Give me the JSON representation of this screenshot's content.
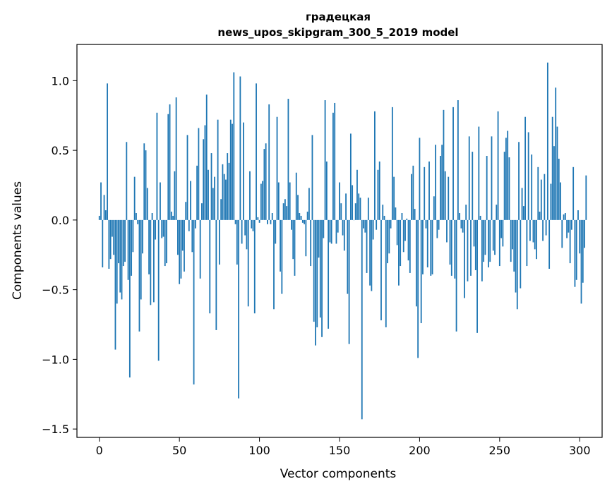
{
  "chart_data": {
    "type": "bar",
    "title_line1": "градецкая",
    "title_line2": "news_upos_skipgram_300_5_2019 model",
    "xlabel": "Vector components",
    "ylabel": "Components values",
    "xlim": [
      -14,
      314
    ],
    "ylim": [
      -1.56,
      1.26
    ],
    "xticks": [
      0,
      50,
      100,
      150,
      200,
      250,
      300
    ],
    "yticks": [
      1.0,
      0.5,
      0.0,
      -0.5,
      -1.0,
      -1.5
    ],
    "ytick_labels": [
      "1.0",
      "0.5",
      "0.0",
      "−0.5",
      "−1.0",
      "−1.5"
    ],
    "bar_color": "#1f77b4",
    "values": [
      0.03,
      0.27,
      -0.34,
      0.18,
      0.07,
      0.98,
      -0.35,
      -0.28,
      -0.12,
      -0.25,
      -0.93,
      -0.6,
      -0.31,
      -0.52,
      -0.57,
      -0.33,
      -0.3,
      0.56,
      -0.43,
      -1.13,
      -0.4,
      -0.23,
      0.31,
      0.05,
      -0.03,
      -0.8,
      -0.57,
      -0.24,
      0.55,
      0.5,
      0.23,
      -0.39,
      -0.61,
      0.05,
      -0.59,
      -0.14,
      0.77,
      -1.01,
      0.27,
      -0.13,
      -0.12,
      -0.33,
      -0.31,
      0.76,
      0.83,
      0.06,
      0.03,
      0.35,
      0.88,
      -0.25,
      -0.46,
      -0.42,
      -0.22,
      -0.37,
      0.13,
      0.61,
      -0.08,
      0.28,
      -0.23,
      -1.18,
      -0.06,
      0.39,
      0.66,
      -0.42,
      0.12,
      0.58,
      0.68,
      0.9,
      0.36,
      -0.67,
      0.48,
      0.23,
      0.31,
      -0.79,
      0.72,
      -0.32,
      0.15,
      0.4,
      0.33,
      0.29,
      0.48,
      0.41,
      0.72,
      0.69,
      1.06,
      -0.03,
      -0.32,
      -1.28,
      1.03,
      -0.17,
      0.7,
      -0.11,
      -0.21,
      -0.62,
      0.35,
      -0.06,
      -0.08,
      -0.67,
      0.98,
      0.02,
      -0.02,
      0.26,
      0.28,
      0.51,
      0.55,
      -0.03,
      0.83,
      -0.03,
      0.05,
      -0.64,
      -0.17,
      0.74,
      0.27,
      -0.37,
      -0.53,
      0.12,
      0.15,
      0.1,
      0.87,
      0.27,
      -0.07,
      -0.28,
      -0.4,
      0.34,
      0.18,
      0.05,
      0.03,
      -0.02,
      -0.03,
      -0.26,
      0.06,
      0.23,
      -0.33,
      0.61,
      -0.73,
      -0.9,
      -0.77,
      -0.27,
      -0.7,
      -0.84,
      -0.13,
      0.86,
      0.42,
      -0.78,
      -0.16,
      -0.17,
      0.77,
      0.84,
      -0.17,
      -0.09,
      0.27,
      0.12,
      -0.11,
      -0.22,
      0.19,
      -0.53,
      -0.89,
      0.62,
      0.25,
      0.0,
      0.12,
      0.36,
      0.19,
      0.16,
      -1.43,
      -0.06,
      -0.09,
      -0.38,
      0.16,
      -0.47,
      -0.51,
      -0.14,
      0.78,
      -0.07,
      0.36,
      0.42,
      -0.72,
      0.11,
      0.03,
      -0.77,
      -0.31,
      -0.24,
      -0.06,
      0.81,
      0.31,
      0.09,
      -0.18,
      -0.47,
      -0.33,
      0.05,
      -0.23,
      -0.15,
      0.01,
      -0.29,
      -0.38,
      0.33,
      0.39,
      0.08,
      -0.62,
      -0.99,
      0.59,
      -0.74,
      -0.39,
      0.38,
      -0.06,
      -0.34,
      0.42,
      -0.4,
      -0.39,
      0.17,
      0.54,
      -0.13,
      -0.07,
      0.46,
      0.54,
      0.79,
      0.35,
      -0.16,
      0.31,
      -0.32,
      -0.4,
      0.81,
      -0.42,
      -0.8,
      0.86,
      0.05,
      -0.06,
      -0.09,
      -0.56,
      0.11,
      -0.44,
      0.6,
      -0.4,
      0.49,
      -0.19,
      -0.36,
      -0.81,
      0.67,
      0.03,
      -0.44,
      -0.3,
      -0.25,
      0.46,
      -0.34,
      -0.3,
      0.6,
      -0.22,
      -0.25,
      0.11,
      0.78,
      -0.33,
      -0.13,
      -0.19,
      0.49,
      0.59,
      0.64,
      0.45,
      -0.3,
      -0.21,
      -0.37,
      -0.52,
      -0.64,
      0.56,
      -0.49,
      0.23,
      0.1,
      0.74,
      -0.33,
      0.63,
      -0.15,
      0.47,
      -0.16,
      -0.21,
      -0.28,
      0.38,
      0.06,
      0.29,
      -0.15,
      0.33,
      -0.11,
      1.13,
      -0.35,
      0.26,
      0.74,
      0.53,
      0.95,
      0.67,
      0.44,
      0.27,
      -0.2,
      0.04,
      0.05,
      -0.13,
      -0.09,
      -0.31,
      -0.07,
      0.38,
      -0.48,
      -0.43,
      0.07,
      -0.24,
      -0.6,
      -0.45,
      -0.2,
      0.32
    ]
  }
}
